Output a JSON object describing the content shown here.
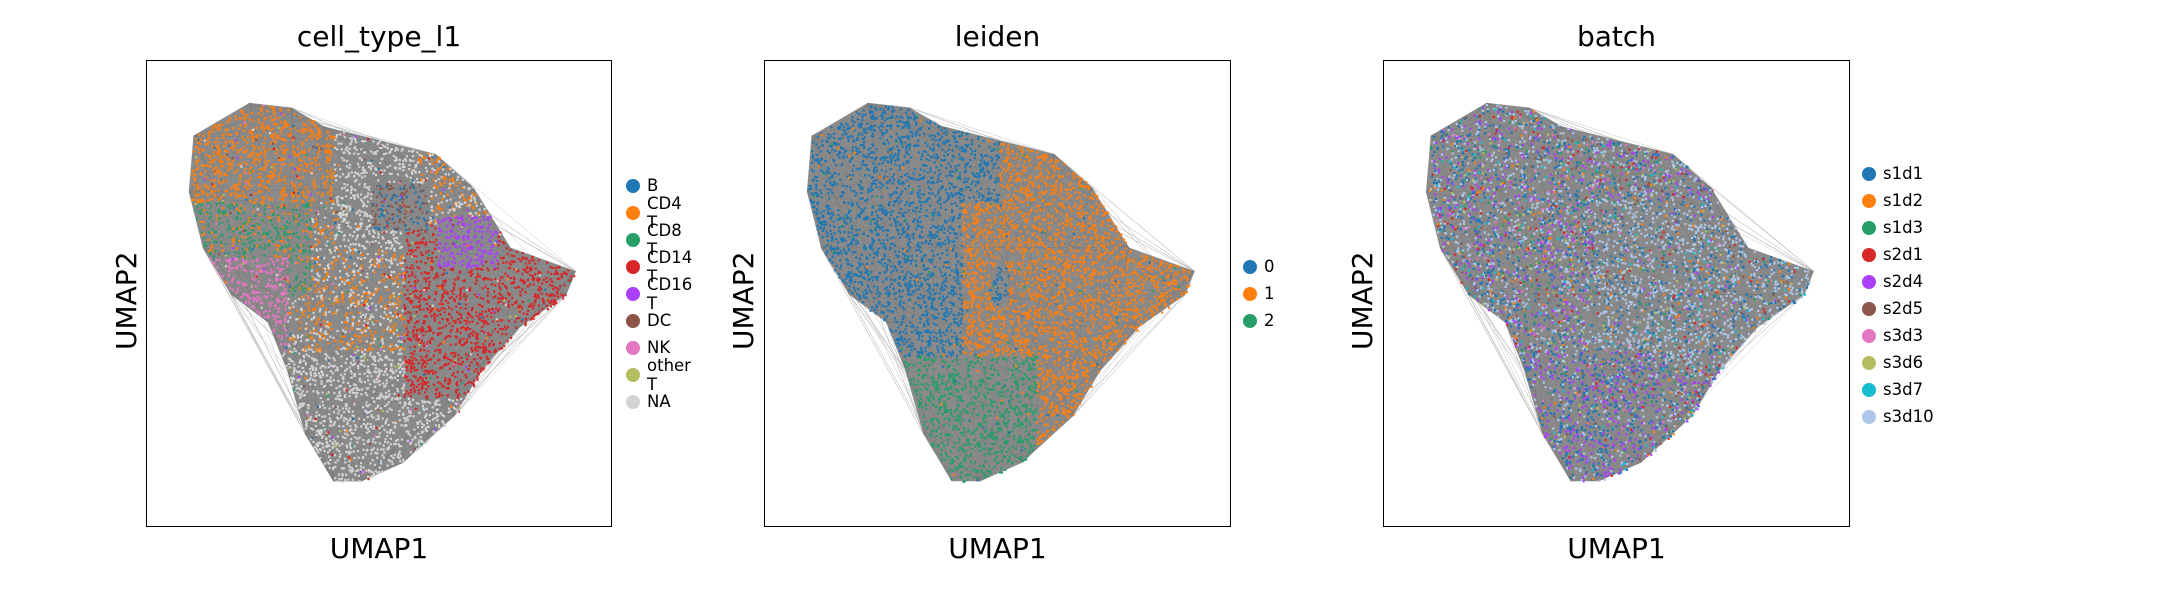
{
  "chart_data": [
    {
      "type": "scatter",
      "title": "cell_type_l1",
      "xlabel": "UMAP1",
      "ylabel": "UMAP2",
      "legend_placement": "right",
      "grid": false,
      "categories": [
        {
          "name": "B",
          "color": "#1f77b4"
        },
        {
          "name": "CD4 T",
          "color": "#ff7f0e"
        },
        {
          "name": "CD8 T",
          "color": "#279e68"
        },
        {
          "name": "CD14 T",
          "color": "#d62728"
        },
        {
          "name": "CD16 T",
          "color": "#aa40fc"
        },
        {
          "name": "DC",
          "color": "#8c564b"
        },
        {
          "name": "NK",
          "color": "#e377c2"
        },
        {
          "name": "other T",
          "color": "#b5bd61"
        },
        {
          "name": "NA",
          "color": "#d3d3d3"
        }
      ]
    },
    {
      "type": "scatter",
      "title": "leiden",
      "xlabel": "UMAP1",
      "ylabel": "UMAP2",
      "legend_placement": "right",
      "grid": false,
      "categories": [
        {
          "name": "0",
          "color": "#1f77b4"
        },
        {
          "name": "1",
          "color": "#ff7f0e"
        },
        {
          "name": "2",
          "color": "#279e68"
        }
      ]
    },
    {
      "type": "scatter",
      "title": "batch",
      "xlabel": "UMAP1",
      "ylabel": "UMAP2",
      "legend_placement": "right",
      "grid": false,
      "categories": [
        {
          "name": "s1d1",
          "color": "#1f77b4"
        },
        {
          "name": "s1d2",
          "color": "#ff7f0e"
        },
        {
          "name": "s1d3",
          "color": "#279e68"
        },
        {
          "name": "s2d1",
          "color": "#d62728"
        },
        {
          "name": "s2d4",
          "color": "#aa40fc"
        },
        {
          "name": "s2d5",
          "color": "#8c564b"
        },
        {
          "name": "s3d3",
          "color": "#e377c2"
        },
        {
          "name": "s3d6",
          "color": "#b5bd61"
        },
        {
          "name": "s3d7",
          "color": "#17becf"
        },
        {
          "name": "s3d10",
          "color": "#aec7e8"
        }
      ]
    }
  ]
}
